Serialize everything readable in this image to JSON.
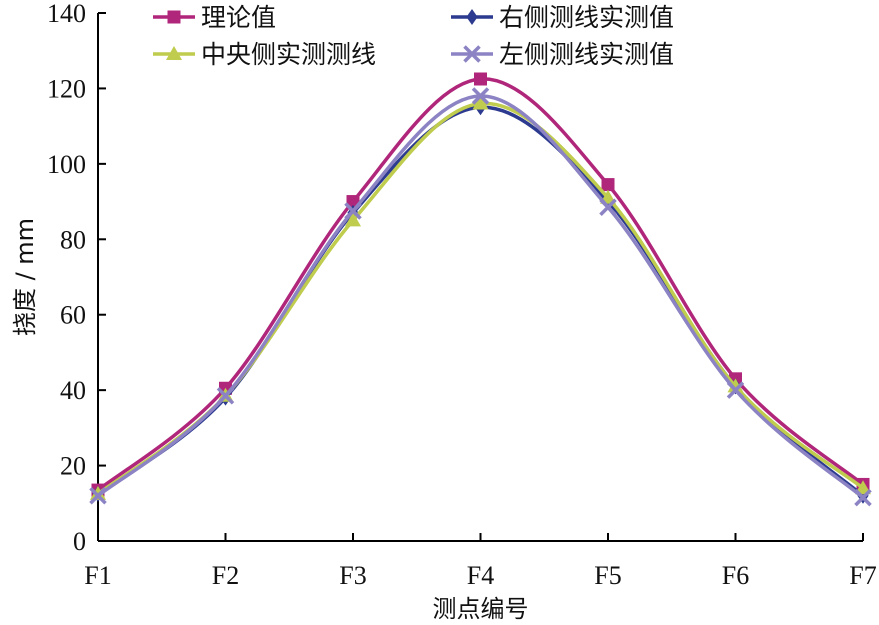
{
  "chart_data": {
    "type": "line",
    "xlabel": "测点编号",
    "ylabel": "挠度 / mm",
    "categories": [
      "F1",
      "F2",
      "F3",
      "F4",
      "F5",
      "F6",
      "F7"
    ],
    "ylim": [
      0,
      140
    ],
    "yticks": [
      "0",
      "20",
      "40",
      "60",
      "80",
      "100",
      "120",
      "140"
    ],
    "grid": false,
    "legend_position": "top",
    "series": [
      {
        "name": "理论值",
        "color": "#b0267a",
        "marker": "square",
        "values": [
          13.5,
          40.5,
          90,
          122.5,
          94.5,
          43,
          15
        ]
      },
      {
        "name": "右侧测线实测值",
        "color": "#2c3a8f",
        "marker": "diamond",
        "values": [
          12.5,
          38,
          87,
          115,
          90,
          41,
          12
        ]
      },
      {
        "name": "中央侧实测测线",
        "color": "#bfcc4d",
        "marker": "triangle",
        "values": [
          12.5,
          38.5,
          85,
          116,
          91,
          41,
          14
        ]
      },
      {
        "name": "左侧测线实测值",
        "color": "#8b83c3",
        "marker": "x",
        "values": [
          12,
          38.5,
          87.5,
          118,
          88.5,
          40,
          11.5
        ]
      }
    ]
  }
}
